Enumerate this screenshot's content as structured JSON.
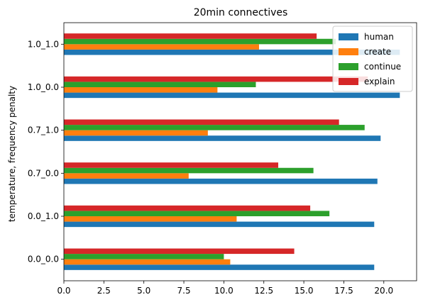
{
  "chart_data": {
    "type": "bar",
    "orientation": "horizontal",
    "title": "20min connectives",
    "xlabel": "",
    "ylabel": "temperature, frequency penalty",
    "xlim": [
      0,
      22.05
    ],
    "xticks": [
      "0.0",
      "2.5",
      "5.0",
      "7.5",
      "10.0",
      "12.5",
      "15.0",
      "17.5",
      "20.0"
    ],
    "categories": [
      "0.0_0.0",
      "0.0_1.0",
      "0.7_0.0",
      "0.7_1.0",
      "1.0_0.0",
      "1.0_1.0"
    ],
    "series": [
      {
        "name": "human",
        "color": "#1f77b4",
        "values": [
          19.4,
          19.4,
          19.6,
          19.8,
          21.0,
          21.0
        ]
      },
      {
        "name": "create",
        "color": "#ff7f0e",
        "values": [
          10.4,
          10.8,
          7.8,
          9.0,
          9.6,
          12.2
        ]
      },
      {
        "name": "continue",
        "color": "#2ca02c",
        "values": [
          10.0,
          16.6,
          15.6,
          18.8,
          12.0,
          17.0
        ]
      },
      {
        "name": "explain",
        "color": "#d62728",
        "values": [
          14.4,
          15.4,
          13.4,
          17.2,
          19.0,
          15.8
        ]
      }
    ],
    "legend_position": "top-right",
    "grid": false
  }
}
